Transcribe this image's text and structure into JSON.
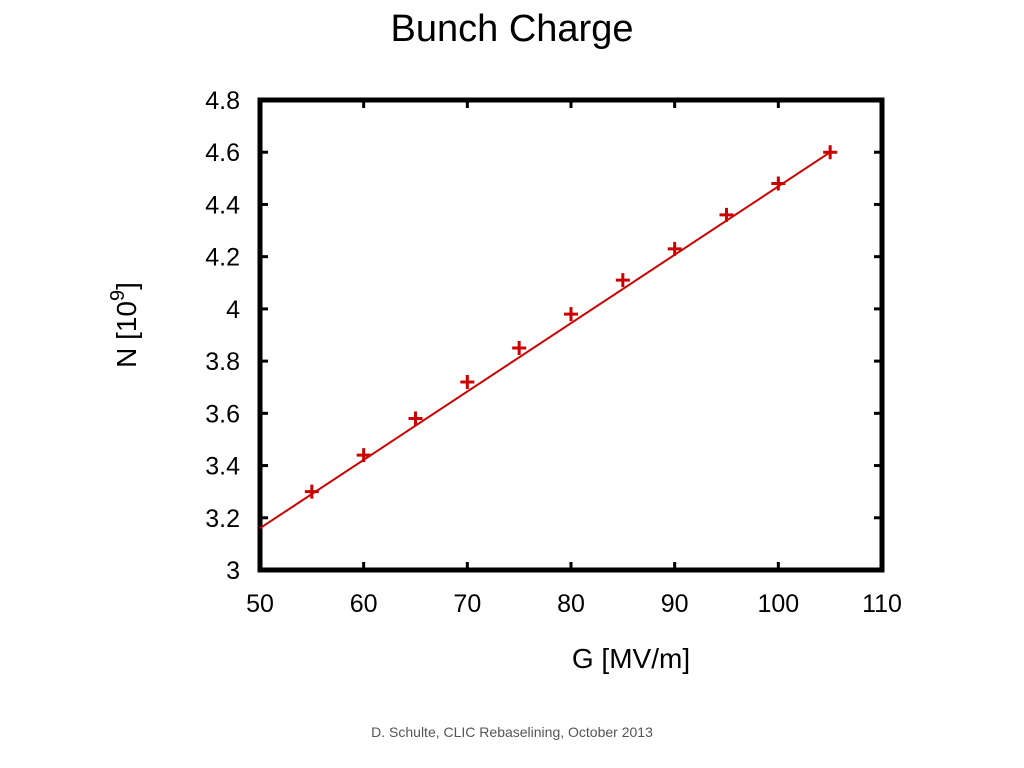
{
  "slide": {
    "title": "Bunch Charge",
    "footer": "D. Schulte, CLIC Rebaselining, October 2013"
  },
  "chart_data": {
    "type": "line",
    "xlabel": "G [MV/m]",
    "ylabel": "N [10",
    "ylabel_superscript": "9",
    "ylabel_suffix": "]",
    "xlim": [
      50,
      110
    ],
    "ylim": [
      3,
      4.8
    ],
    "x_ticks": [
      50,
      60,
      70,
      80,
      90,
      100,
      110
    ],
    "y_ticks": [
      3,
      3.2,
      3.4,
      3.6,
      3.8,
      4,
      4.2,
      4.4,
      4.6,
      4.8
    ],
    "y_tick_labels": [
      "3",
      "3.2",
      "3.4",
      "3.6",
      "3.8",
      "4",
      "4.2",
      "4.4",
      "4.6",
      "4.8"
    ],
    "grid": false,
    "legend": "none",
    "color": "#cc0000",
    "line": {
      "x": [
        50,
        105
      ],
      "y": [
        3.16,
        4.6
      ]
    },
    "series": [
      {
        "marker": "plus",
        "x": [
          55,
          60,
          65,
          70,
          75,
          80,
          85,
          90,
          95,
          100,
          105
        ],
        "y": [
          3.3,
          3.44,
          3.58,
          3.72,
          3.85,
          3.98,
          4.11,
          4.23,
          4.36,
          4.48,
          4.6
        ]
      }
    ]
  }
}
